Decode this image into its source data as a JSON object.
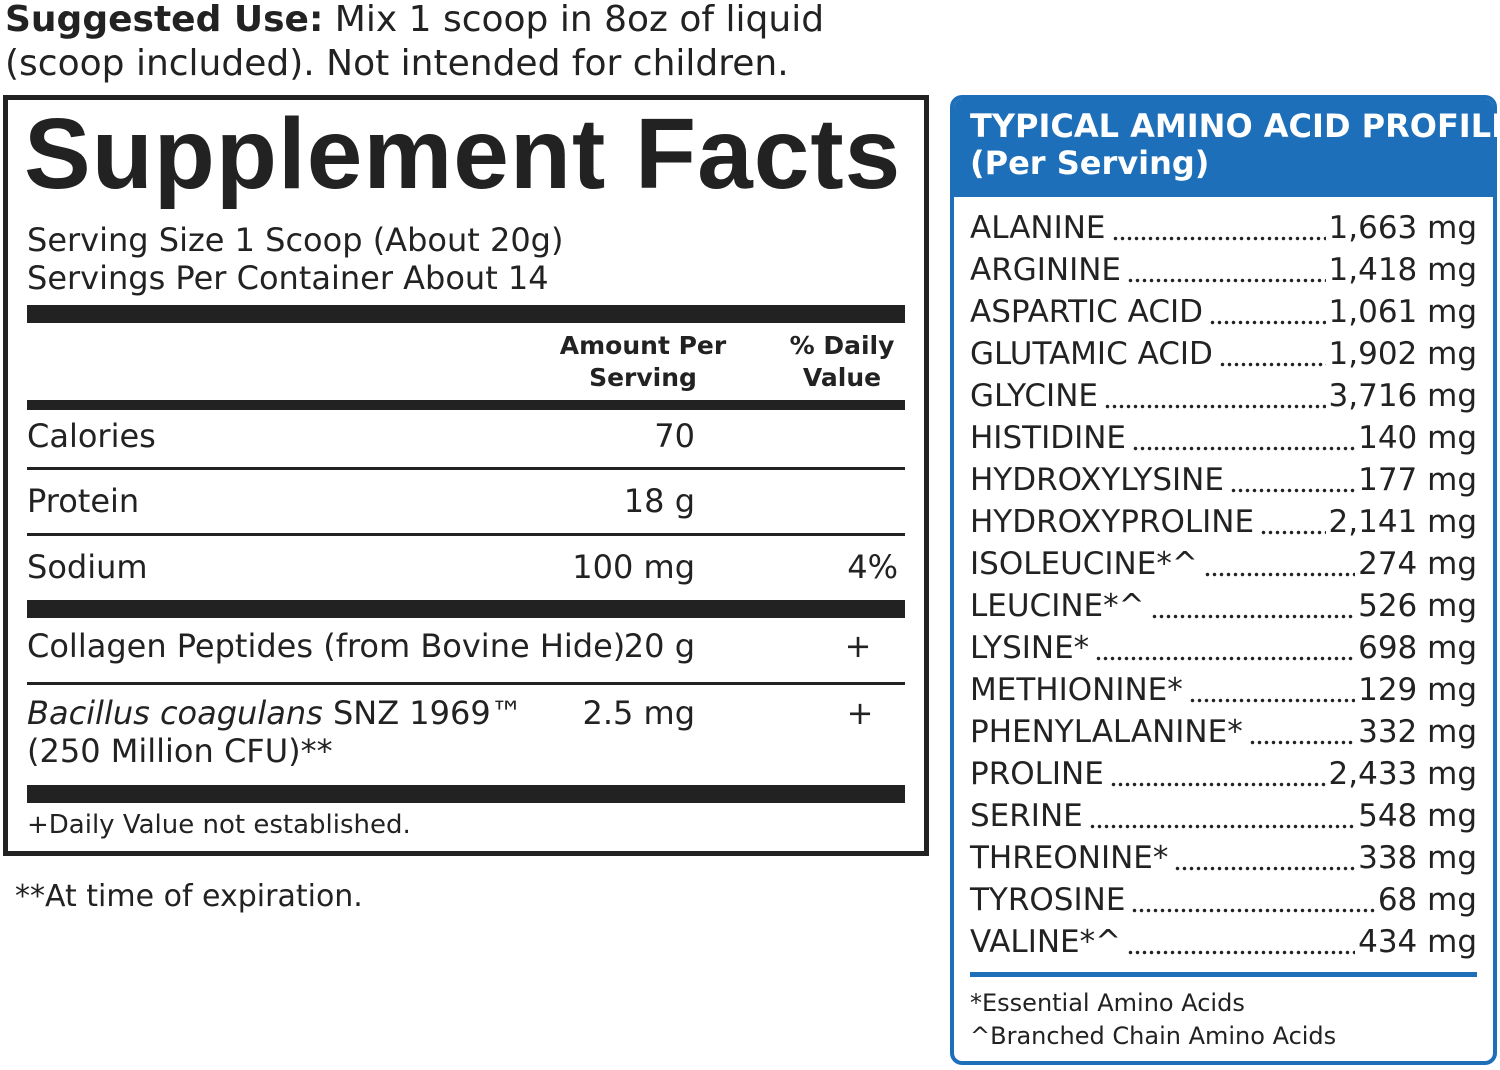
{
  "suggested_use": {
    "label": "Suggested Use:",
    "lines": [
      "Mix 1 scoop in 8oz of liquid",
      "(scoop included). Not intended for children."
    ]
  },
  "supplement_facts": {
    "title": "Supplement Facts",
    "serving_size": "Serving Size 1 Scoop (About 20g)",
    "servings_per_container": "Servings Per Container About 14",
    "headers": {
      "amount": [
        "Amount Per",
        "Serving"
      ],
      "daily_value": [
        "% Daily",
        "Value"
      ]
    },
    "rows": [
      {
        "name": "Calories",
        "amount": "70"
      },
      {
        "name": "Protein",
        "amount": "18 g"
      },
      {
        "name": "Sodium",
        "amount": "100 mg",
        "daily_value": "4%"
      },
      {
        "name": "Collagen Peptides (from Bovine Hide)",
        "amount": "20 g",
        "daily_value": "+"
      },
      {
        "name_italic": "Bacillus coagulans",
        "name": " SNZ 1969™",
        "name_line2": "(250 Million CFU)**",
        "amount": "2.5 mg",
        "daily_value": "+"
      }
    ],
    "footnote": "+Daily Value not established."
  },
  "expiration_note": "**At time of expiration.",
  "amino_profile": {
    "title": [
      "TYPICAL AMINO ACID PROFILE",
      "(Per Serving)"
    ],
    "items": [
      {
        "name": "ALANINE",
        "amount": "1,663 mg"
      },
      {
        "name": "ARGININE",
        "amount": "1,418 mg"
      },
      {
        "name": "ASPARTIC ACID",
        "amount": "1,061 mg"
      },
      {
        "name": "GLUTAMIC ACID",
        "amount": "1,902 mg"
      },
      {
        "name": "GLYCINE",
        "amount": "3,716 mg"
      },
      {
        "name": "HISTIDINE",
        "amount": "140 mg"
      },
      {
        "name": "HYDROXYLYSINE",
        "amount": "177 mg"
      },
      {
        "name": "HYDROXYPROLINE",
        "amount": "2,141 mg"
      },
      {
        "name": "ISOLEUCINE*^",
        "amount": "274 mg"
      },
      {
        "name": "LEUCINE*^",
        "amount": "526 mg"
      },
      {
        "name": "LYSINE*",
        "amount": "698 mg"
      },
      {
        "name": "METHIONINE*",
        "amount": "129 mg"
      },
      {
        "name": "PHENYLALANINE*",
        "amount": "332 mg"
      },
      {
        "name": "PROLINE",
        "amount": "2,433 mg"
      },
      {
        "name": "SERINE",
        "amount": "548 mg"
      },
      {
        "name": "THREONINE*",
        "amount": "338 mg"
      },
      {
        "name": "TYROSINE",
        "amount": "68 mg"
      },
      {
        "name": "VALINE*^",
        "amount": "434 mg"
      }
    ],
    "footnotes": [
      "*Essential Amino Acids",
      "^Branched Chain Amino Acids"
    ]
  }
}
